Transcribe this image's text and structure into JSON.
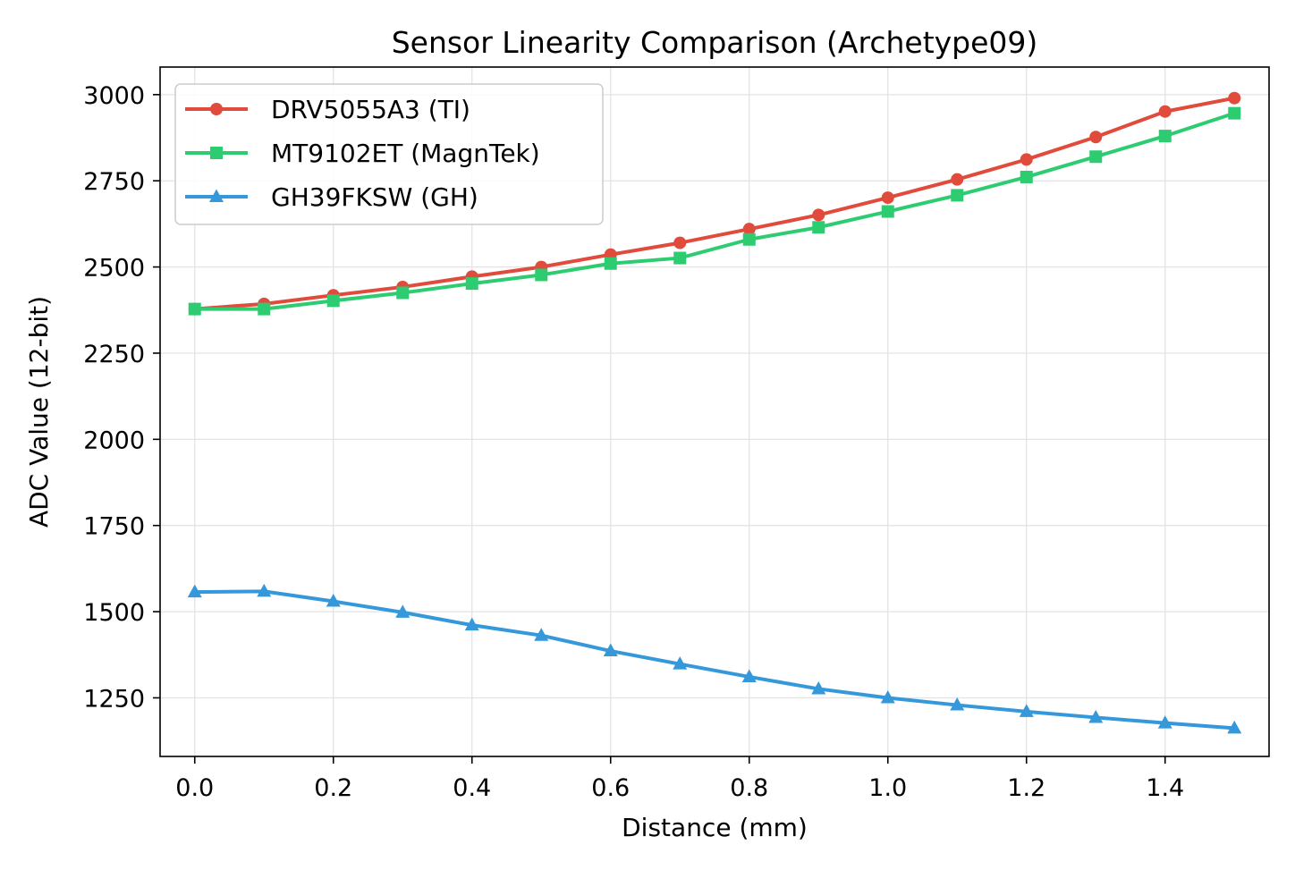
{
  "chart_data": {
    "type": "line",
    "title": "Sensor Linearity Comparison (Archetype09)",
    "xlabel": "Distance (mm)",
    "ylabel": "ADC Value (12-bit)",
    "xlim": [
      -0.05,
      1.55
    ],
    "ylim": [
      1080,
      3080
    ],
    "xticks": [
      0.0,
      0.2,
      0.4,
      0.6,
      0.8,
      1.0,
      1.2,
      1.4
    ],
    "xtick_labels": [
      "0.0",
      "0.2",
      "0.4",
      "0.6",
      "0.8",
      "1.0",
      "1.2",
      "1.4"
    ],
    "yticks": [
      1250,
      1500,
      1750,
      2000,
      2250,
      2500,
      2750,
      3000
    ],
    "ytick_labels": [
      "1250",
      "1500",
      "1750",
      "2000",
      "2250",
      "2500",
      "2750",
      "3000"
    ],
    "grid": true,
    "legend_position": "top-left",
    "x": [
      0.0,
      0.1,
      0.2,
      0.3,
      0.4,
      0.5,
      0.6,
      0.7,
      0.8,
      0.9,
      1.0,
      1.1,
      1.2,
      1.3,
      1.4,
      1.5
    ],
    "series": [
      {
        "name": "DRV5055A3 (TI)",
        "color": "#e04b3c",
        "marker": "circle",
        "values": [
          2378,
          2393,
          2418,
          2442,
          2472,
          2500,
          2536,
          2570,
          2610,
          2651,
          2701,
          2754,
          2812,
          2877,
          2951,
          2990
        ]
      },
      {
        "name": "MT9102ET (MagnTek)",
        "color": "#2ecc71",
        "marker": "square",
        "values": [
          2378,
          2378,
          2402,
          2425,
          2452,
          2477,
          2510,
          2526,
          2580,
          2615,
          2661,
          2708,
          2761,
          2820,
          2880,
          2946
        ]
      },
      {
        "name": "GH39FKSW (GH)",
        "color": "#3498db",
        "marker": "triangle",
        "values": [
          1557,
          1559,
          1530,
          1498,
          1461,
          1431,
          1386,
          1348,
          1311,
          1276,
          1250,
          1229,
          1210,
          1193,
          1177,
          1162
        ]
      }
    ]
  }
}
